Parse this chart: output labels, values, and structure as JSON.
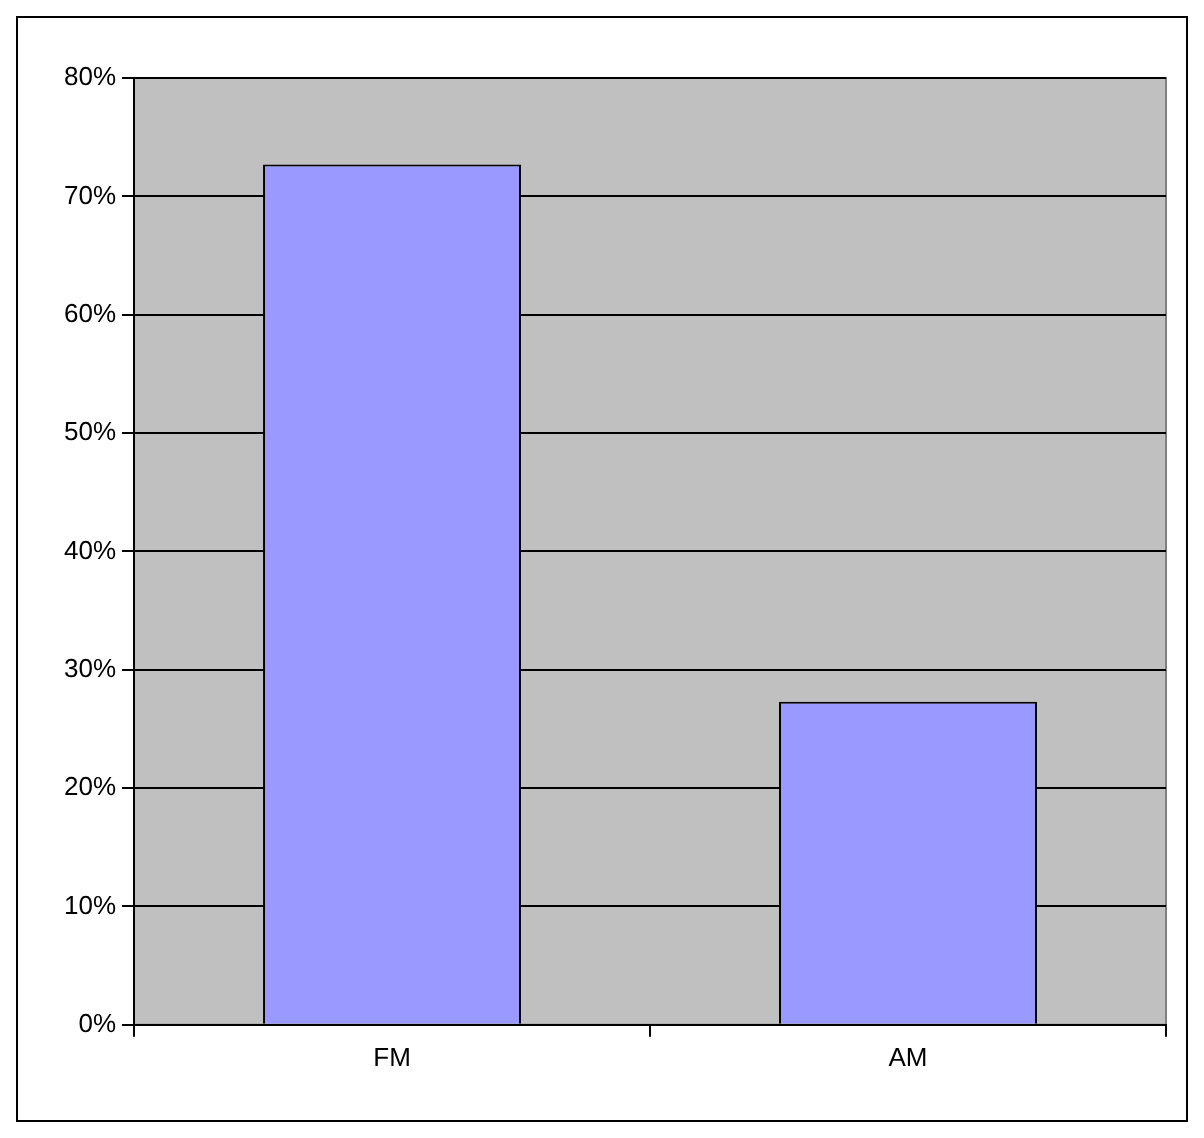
{
  "chart_data": {
    "type": "bar",
    "categories": [
      "FM",
      "AM"
    ],
    "values": [
      72.7,
      27.3
    ],
    "color": "#9999ff",
    "ylim": [
      0,
      80
    ],
    "yticks": [
      {
        "value": 0,
        "label": "0%"
      },
      {
        "value": 10,
        "label": "10%"
      },
      {
        "value": 20,
        "label": "20%"
      },
      {
        "value": 30,
        "label": "30%"
      },
      {
        "value": 40,
        "label": "40%"
      },
      {
        "value": 50,
        "label": "50%"
      },
      {
        "value": 60,
        "label": "60%"
      },
      {
        "value": 70,
        "label": "70%"
      },
      {
        "value": 80,
        "label": "80%"
      }
    ],
    "grid": "y",
    "legend": false
  }
}
